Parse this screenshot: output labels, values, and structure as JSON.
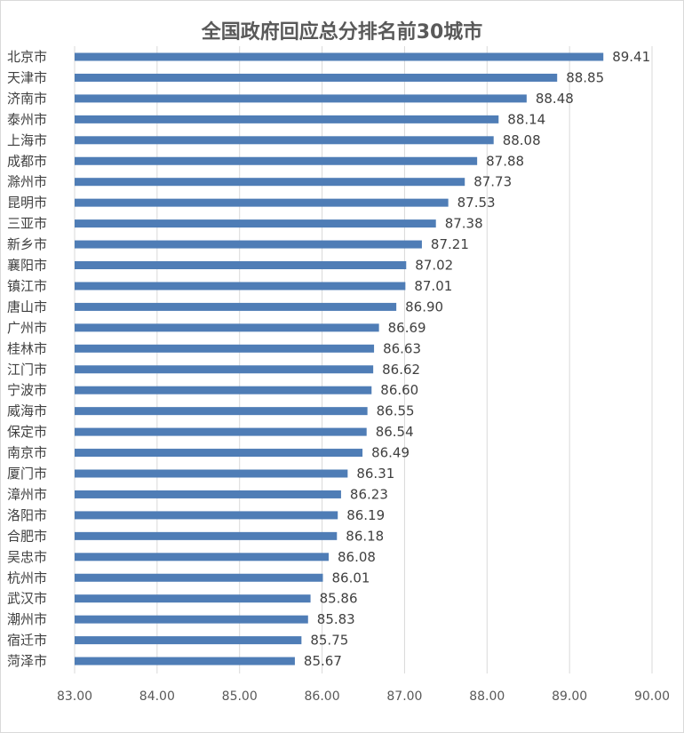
{
  "chart_data": {
    "type": "bar",
    "orientation": "horizontal",
    "title": "全国政府回应总分排名前30城市",
    "xlabel": "",
    "ylabel": "",
    "xlim": [
      83.0,
      90.0
    ],
    "x_ticks": [
      "83.00",
      "84.00",
      "85.00",
      "86.00",
      "87.00",
      "88.00",
      "89.00",
      "90.00"
    ],
    "grid": "vertical",
    "legend": "none",
    "bar_color": "#4f7db6",
    "categories": [
      "北京市",
      "天津市",
      "济南市",
      "泰州市",
      "上海市",
      "成都市",
      "滁州市",
      "昆明市",
      "三亚市",
      "新乡市",
      "襄阳市",
      "镇江市",
      "唐山市",
      "广州市",
      "桂林市",
      "江门市",
      "宁波市",
      "威海市",
      "保定市",
      "南京市",
      "厦门市",
      "漳州市",
      "洛阳市",
      "合肥市",
      "吴忠市",
      "杭州市",
      "武汉市",
      "潮州市",
      "宿迁市",
      "菏泽市"
    ],
    "values": [
      89.41,
      88.85,
      88.48,
      88.14,
      88.08,
      87.88,
      87.73,
      87.53,
      87.38,
      87.21,
      87.02,
      87.01,
      86.9,
      86.69,
      86.63,
      86.62,
      86.6,
      86.55,
      86.54,
      86.49,
      86.31,
      86.23,
      86.19,
      86.18,
      86.08,
      86.01,
      85.86,
      85.83,
      85.75,
      85.67
    ],
    "value_labels": [
      "89.41",
      "88.85",
      "88.48",
      "88.14",
      "88.08",
      "87.88",
      "87.73",
      "87.53",
      "87.38",
      "87.21",
      "87.02",
      "87.01",
      "86.90",
      "86.69",
      "86.63",
      "86.62",
      "86.60",
      "86.55",
      "86.54",
      "86.49",
      "86.31",
      "86.23",
      "86.19",
      "86.18",
      "86.08",
      "86.01",
      "85.86",
      "85.83",
      "85.75",
      "85.67"
    ]
  }
}
